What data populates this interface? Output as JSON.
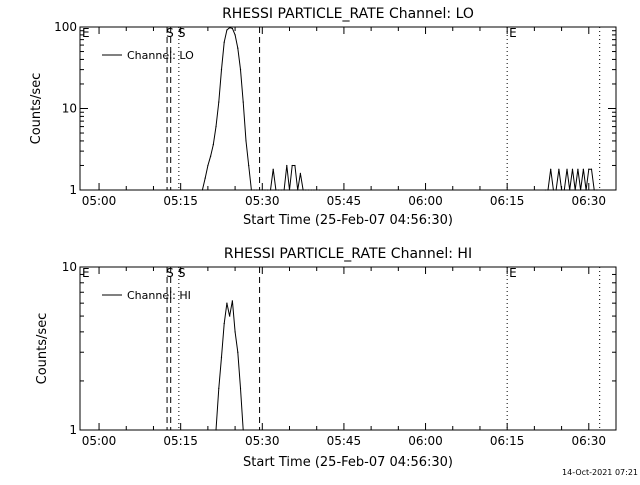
{
  "footer_timestamp": "14-Oct-2021 07:21",
  "colors": {
    "background": "#ffffff",
    "ink": "#000000"
  },
  "chart_data": [
    {
      "type": "line",
      "title": "RHESSI PARTICLE_RATE Channel: LO",
      "xlabel": "Start Time (25-Feb-07 04:56:30)",
      "ylabel": "Counts/sec",
      "yscale": "log",
      "ylim": [
        1,
        100
      ],
      "xlim": [
        "04:56:30",
        "06:35:00"
      ],
      "x_ticks": [
        "05:00",
        "05:15",
        "05:30",
        "05:45",
        "06:00",
        "06:15",
        "06:30"
      ],
      "y_ticks": [
        "1",
        "10",
        "100"
      ],
      "grid": false,
      "legend": {
        "entries": [
          "Channel: LO"
        ],
        "position": "top-left"
      },
      "series": [
        {
          "name": "Channel: LO",
          "x": [
            "05:19:00",
            "05:19:30",
            "05:20:00",
            "05:20:30",
            "05:21:00",
            "05:21:30",
            "05:22:00",
            "05:22:30",
            "05:23:00",
            "05:23:30",
            "05:24:00",
            "05:24:30",
            "05:25:00",
            "05:25:30",
            "05:26:00",
            "05:26:30",
            "05:27:00",
            "05:27:30",
            "05:28:00",
            "05:28:30",
            "05:29:00",
            "05:29:30",
            "05:30:00",
            "05:30:30",
            "05:31:00",
            "05:31:30",
            "05:32:00",
            "05:32:30",
            "05:33:00",
            "05:33:30",
            "05:34:00",
            "05:34:30",
            "05:35:00",
            "05:35:30",
            "05:36:00",
            "05:36:30",
            "05:37:00",
            "05:37:30",
            "05:38:00",
            "05:38:30",
            "05:39:00",
            "05:39:30",
            "05:40:00",
            "05:40:30",
            "06:22:00",
            "06:22:30",
            "06:23:00",
            "06:23:30",
            "06:24:00",
            "06:24:30",
            "06:25:00",
            "06:25:30",
            "06:26:00",
            "06:26:30",
            "06:27:00",
            "06:27:30",
            "06:28:00",
            "06:28:30",
            "06:29:00",
            "06:29:30",
            "06:30:00",
            "06:30:30",
            "06:31:00",
            "06:31:30"
          ],
          "y": [
            1,
            1.4,
            2,
            2.6,
            3.6,
            6,
            12,
            30,
            65,
            92,
            98,
            96,
            80,
            55,
            30,
            12,
            4,
            2,
            1,
            1,
            1,
            1,
            1,
            1,
            1,
            1,
            1.8,
            1,
            1,
            1,
            1,
            2,
            1,
            2,
            2,
            1,
            1.6,
            1,
            1,
            1,
            1,
            1,
            1,
            1,
            1,
            1,
            1.8,
            1,
            1,
            1.8,
            1,
            1,
            1.8,
            1,
            1.8,
            1,
            1.8,
            1,
            1.8,
            1,
            1.8,
            1.8,
            1,
            1
          ]
        }
      ],
      "annotations": [
        {
          "label": "E",
          "x": "04:57:00",
          "style": "none"
        },
        {
          "label": "S",
          "x": "05:12:30",
          "style": "dashed"
        },
        {
          "label": "",
          "x": "05:13:10",
          "style": "dashed"
        },
        {
          "label": "S",
          "x": "05:14:40",
          "style": "dotted"
        },
        {
          "label": "",
          "x": "05:29:30",
          "style": "dashed"
        },
        {
          "label": "E",
          "x": "06:15:00",
          "style": "dotted"
        },
        {
          "label": "",
          "x": "06:32:00",
          "style": "dotted"
        }
      ]
    },
    {
      "type": "line",
      "title": "RHESSI PARTICLE_RATE Channel: HI",
      "xlabel": "Start Time (25-Feb-07 04:56:30)",
      "ylabel": "Counts/sec",
      "yscale": "log",
      "ylim": [
        1,
        10
      ],
      "xlim": [
        "04:56:30",
        "06:35:00"
      ],
      "x_ticks": [
        "05:00",
        "05:15",
        "05:30",
        "05:45",
        "06:00",
        "06:15",
        "06:30"
      ],
      "y_ticks": [
        "1",
        "10"
      ],
      "grid": false,
      "legend": {
        "entries": [
          "Channel: HI"
        ],
        "position": "top-left"
      },
      "series": [
        {
          "name": "Channel: HI",
          "x": [
            "05:21:30",
            "05:22:00",
            "05:22:30",
            "05:23:00",
            "05:23:30",
            "05:24:00",
            "05:24:30",
            "05:25:00",
            "05:25:30",
            "05:26:00",
            "05:26:30"
          ],
          "y": [
            1,
            1.8,
            2.8,
            4.5,
            6.0,
            5.0,
            6.2,
            4.0,
            3.0,
            1.8,
            1
          ]
        }
      ],
      "annotations": [
        {
          "label": "E",
          "x": "04:57:00",
          "style": "none"
        },
        {
          "label": "S",
          "x": "05:12:30",
          "style": "dashed"
        },
        {
          "label": "",
          "x": "05:13:10",
          "style": "dashed"
        },
        {
          "label": "S",
          "x": "05:14:40",
          "style": "dotted"
        },
        {
          "label": "",
          "x": "05:29:30",
          "style": "dashed"
        },
        {
          "label": "E",
          "x": "06:15:00",
          "style": "dotted"
        },
        {
          "label": "",
          "x": "06:32:00",
          "style": "dotted"
        }
      ]
    }
  ]
}
